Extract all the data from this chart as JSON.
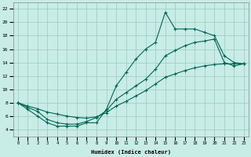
{
  "xlabel": "Humidex (Indice chaleur)",
  "bg_color": "#c8ece6",
  "grid_color": "#99ccbb",
  "line_color": "#006655",
  "xlim": [
    -0.5,
    23.5
  ],
  "ylim": [
    3.0,
    23.0
  ],
  "xticks": [
    0,
    1,
    2,
    3,
    4,
    5,
    6,
    7,
    8,
    9,
    10,
    11,
    12,
    13,
    14,
    15,
    16,
    17,
    18,
    19,
    20,
    21,
    22,
    23
  ],
  "yticks": [
    4,
    6,
    8,
    10,
    12,
    14,
    16,
    18,
    20,
    22
  ],
  "line1_x": [
    0,
    1,
    2,
    3,
    4,
    5,
    6,
    7,
    8,
    9,
    10,
    11,
    12,
    13,
    14,
    15,
    16,
    17,
    18,
    19,
    20,
    21,
    22,
    23
  ],
  "line1_y": [
    8.0,
    7.0,
    6.0,
    5.0,
    4.5,
    4.5,
    4.5,
    5.0,
    5.0,
    7.0,
    10.5,
    12.5,
    14.5,
    16.0,
    17.0,
    21.5,
    19.0,
    19.0,
    19.0,
    18.5,
    18.0,
    15.0,
    14.0,
    13.8
  ],
  "line2_x": [
    0,
    1,
    2,
    3,
    4,
    5,
    6,
    7,
    8,
    9,
    10,
    11,
    12,
    13,
    14,
    15,
    16,
    17,
    18,
    19,
    20,
    21,
    22,
    23
  ],
  "line2_y": [
    8.0,
    7.5,
    7.1,
    6.6,
    6.3,
    6.0,
    5.8,
    5.7,
    5.9,
    6.5,
    7.5,
    8.2,
    9.0,
    9.8,
    10.8,
    11.8,
    12.3,
    12.8,
    13.2,
    13.5,
    13.7,
    13.8,
    13.8,
    13.8
  ],
  "line3_x": [
    0,
    1,
    2,
    3,
    4,
    5,
    6,
    7,
    8,
    9,
    10,
    11,
    12,
    13,
    14,
    15,
    16,
    17,
    18,
    19,
    20,
    21,
    22,
    23
  ],
  "line3_y": [
    8.0,
    7.3,
    6.7,
    5.5,
    5.0,
    4.8,
    4.8,
    5.2,
    5.8,
    6.8,
    8.5,
    9.5,
    10.5,
    11.5,
    13.0,
    15.0,
    15.8,
    16.5,
    17.0,
    17.2,
    17.5,
    14.0,
    13.5,
    13.8
  ],
  "figsize": [
    3.2,
    2.0
  ],
  "dpi": 100
}
